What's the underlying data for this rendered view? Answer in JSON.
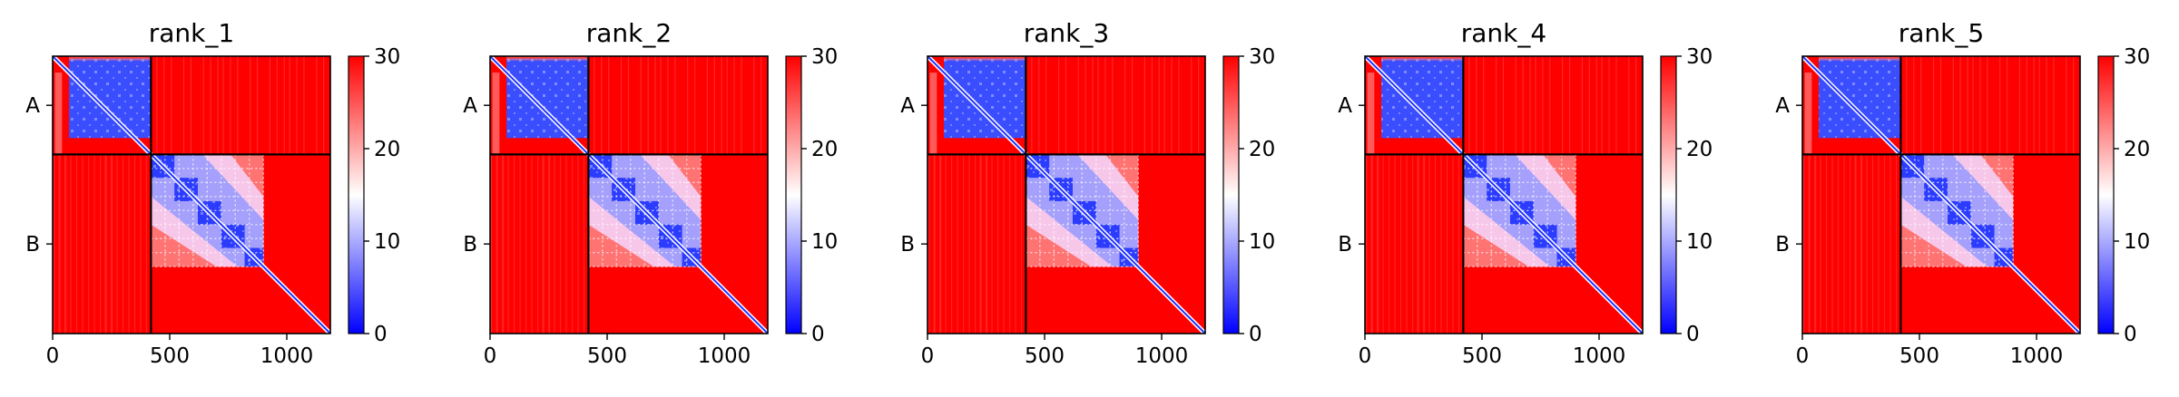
{
  "chart_data": {
    "type": "heatmap",
    "panels": [
      {
        "title": "rank_1"
      },
      {
        "title": "rank_2"
      },
      {
        "title": "rank_3"
      },
      {
        "title": "rank_4"
      },
      {
        "title": "rank_5"
      }
    ],
    "x_range": [
      0,
      1186
    ],
    "x_ticks": [
      0,
      500,
      1000
    ],
    "x_tick_labels": [
      "0",
      "500",
      "1000"
    ],
    "chain_boundary": 420,
    "y_tick_labels": [
      "A",
      "B"
    ],
    "colorbar": {
      "min": 0,
      "max": 30,
      "ticks": [
        0,
        10,
        20,
        30
      ],
      "tick_labels": [
        "0",
        "10",
        "20",
        "30"
      ],
      "colors": {
        "low": "#0000ff",
        "mid": "#ffffff",
        "high": "#ff0000"
      }
    },
    "structure": {
      "chain_A_low_region": [
        70,
        420
      ],
      "chain_B_domains": [
        [
          420,
          520
        ],
        [
          520,
          620
        ],
        [
          620,
          720
        ],
        [
          720,
          820
        ],
        [
          820,
          900
        ]
      ],
      "chain_B_low_region": [
        420,
        900
      ],
      "diagonal": true
    },
    "grid": false
  }
}
